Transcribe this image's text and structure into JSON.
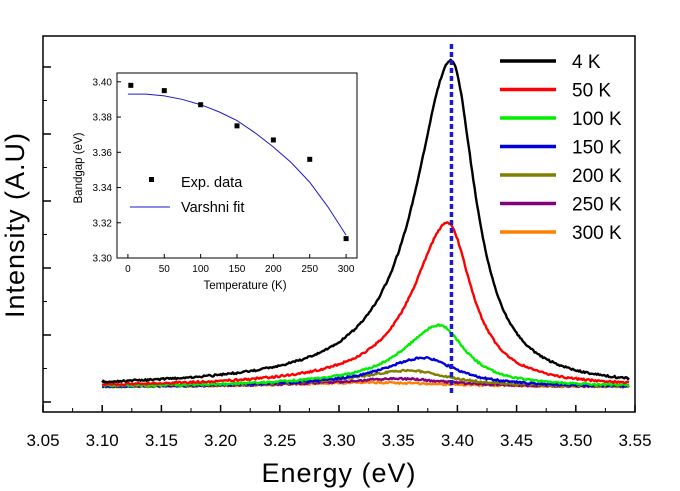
{
  "chart_data": [
    {
      "type": "line",
      "title": "",
      "xlabel": "Energy (eV)",
      "ylabel": "Intensity (A.U)",
      "xlim": [
        3.05,
        3.55
      ],
      "x_ticks": [
        "3.05",
        "3.10",
        "3.15",
        "3.20",
        "3.25",
        "3.30",
        "3.35",
        "3.40",
        "3.45",
        "3.50",
        "3.55"
      ],
      "y_tick_labels_shown": false,
      "grid": false,
      "legend_position": "top-right",
      "reference_line": {
        "x": 3.395,
        "style": "dotted",
        "color": "#1a1acc"
      },
      "series": [
        {
          "name": "4 K",
          "color": "#000000",
          "peak_x": 3.395,
          "peak_intensity": 1.0,
          "width_left": 0.04,
          "width_right": 0.026,
          "baseline": 0.01
        },
        {
          "name": "50 K",
          "color": "#ff0000",
          "peak_x": 3.392,
          "peak_intensity": 0.5,
          "width_left": 0.038,
          "width_right": 0.026,
          "baseline": 0.01
        },
        {
          "name": "100 K",
          "color": "#00ee00",
          "peak_x": 3.385,
          "peak_intensity": 0.185,
          "width_left": 0.04,
          "width_right": 0.028,
          "baseline": 0.01
        },
        {
          "name": "150 K",
          "color": "#0000dd",
          "peak_x": 3.372,
          "peak_intensity": 0.085,
          "width_left": 0.045,
          "width_right": 0.034,
          "baseline": 0.01
        },
        {
          "name": "200 K",
          "color": "#808000",
          "peak_x": 3.36,
          "peak_intensity": 0.045,
          "width_left": 0.055,
          "width_right": 0.04,
          "baseline": 0.01
        },
        {
          "name": "250 K",
          "color": "#800080",
          "peak_x": 3.352,
          "peak_intensity": 0.02,
          "width_left": 0.06,
          "width_right": 0.045,
          "baseline": 0.01
        },
        {
          "name": "300 K",
          "color": "#ff8000",
          "peak_x": 3.33,
          "peak_intensity": 0.008,
          "width_left": 0.08,
          "width_right": 0.06,
          "baseline": 0.01
        }
      ]
    },
    {
      "type": "scatter",
      "title": "",
      "xlabel": "Temperature (K)",
      "ylabel": "Bandgap (eV)",
      "xlim": [
        -15,
        315
      ],
      "ylim": [
        3.3,
        3.405
      ],
      "x_ticks": [
        "0",
        "50",
        "100",
        "150",
        "200",
        "250",
        "300"
      ],
      "y_ticks": [
        "3.30",
        "3.32",
        "3.34",
        "3.36",
        "3.38",
        "3.40"
      ],
      "legend_position": "lower-left",
      "series": [
        {
          "name": "Exp. data",
          "marker": "square",
          "color": "#000000",
          "x": [
            4,
            50,
            100,
            150,
            200,
            250,
            300
          ],
          "y": [
            3.398,
            3.395,
            3.387,
            3.375,
            3.367,
            3.356,
            3.311
          ]
        },
        {
          "name": "Varshni fit",
          "marker": "none",
          "color": "#1a1acc",
          "x": [
            0,
            25,
            50,
            75,
            100,
            125,
            150,
            175,
            200,
            225,
            250,
            275,
            300
          ],
          "y": [
            3.393,
            3.393,
            3.392,
            3.39,
            3.387,
            3.383,
            3.378,
            3.371,
            3.363,
            3.354,
            3.343,
            3.329,
            3.313
          ]
        }
      ]
    }
  ]
}
